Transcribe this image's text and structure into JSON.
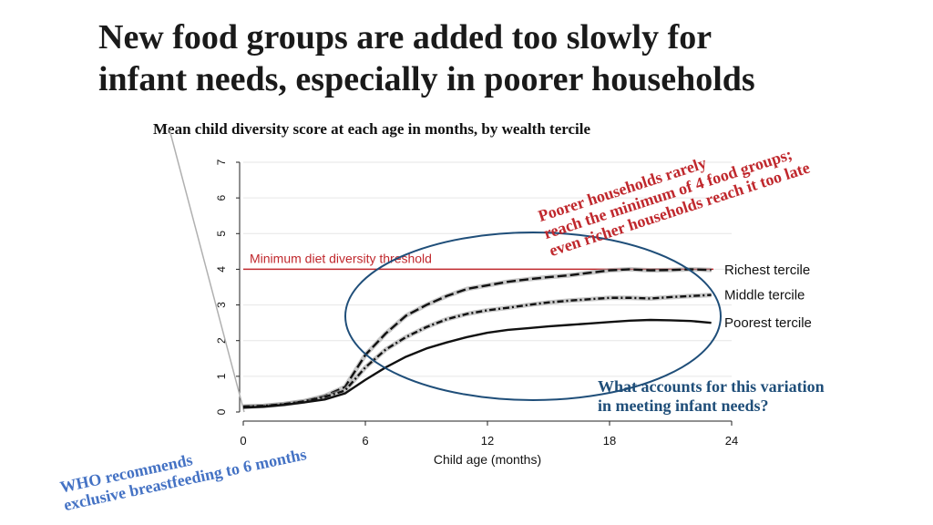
{
  "slide": {
    "title_line1": "New food groups are added too slowly for",
    "title_line2": "infant needs, especially in poorer households"
  },
  "annotations": {
    "poor_note": [
      "Poorer households rarely",
      "reach the minimum of 4 food groups;",
      "even richer households reach it too late"
    ],
    "who_note": [
      "WHO recommends",
      "exclusive breastfeeding to 6 months"
    ],
    "question": [
      "What accounts for this variation",
      "in meeting infant needs?"
    ]
  },
  "colors": {
    "threshold": "#c0282d",
    "ellipse": "#1f4e79",
    "poor_note": "#c0282d",
    "who_note": "#4472c4",
    "question": "#1f4e79",
    "grid": "#e6e6e6"
  },
  "chart_data": {
    "type": "line",
    "title": "Mean child diversity score at each age in months, by wealth tercile",
    "xlabel": "Child age (months)",
    "ylabel": "",
    "xlim": [
      0,
      24
    ],
    "ylim": [
      0,
      7
    ],
    "xticks": [
      0,
      6,
      12,
      18,
      24
    ],
    "yticks": [
      0,
      1,
      2,
      3,
      4,
      5,
      6,
      7
    ],
    "threshold": {
      "value": 4,
      "label": "Minimum diet diversity threshold"
    },
    "x": [
      0,
      1,
      2,
      3,
      4,
      5,
      6,
      7,
      8,
      9,
      10,
      11,
      12,
      13,
      14,
      15,
      16,
      17,
      18,
      19,
      20,
      21,
      22,
      23
    ],
    "series": [
      {
        "name": "Richest tercile",
        "dash": "10 4",
        "values": [
          0.15,
          0.17,
          0.22,
          0.3,
          0.45,
          0.7,
          1.6,
          2.2,
          2.7,
          3.0,
          3.25,
          3.45,
          3.55,
          3.65,
          3.72,
          3.78,
          3.83,
          3.9,
          3.97,
          4.0,
          3.97,
          3.98,
          4.0,
          3.98
        ]
      },
      {
        "name": "Middle tercile",
        "dash": "7 3 2 3",
        "values": [
          0.15,
          0.17,
          0.22,
          0.3,
          0.42,
          0.6,
          1.25,
          1.75,
          2.1,
          2.38,
          2.6,
          2.75,
          2.85,
          2.92,
          3.0,
          3.07,
          3.12,
          3.16,
          3.2,
          3.2,
          3.18,
          3.22,
          3.25,
          3.28
        ]
      },
      {
        "name": "Poorest tercile",
        "dash": "",
        "values": [
          0.12,
          0.15,
          0.2,
          0.27,
          0.35,
          0.52,
          0.9,
          1.25,
          1.55,
          1.78,
          1.95,
          2.1,
          2.22,
          2.3,
          2.35,
          2.4,
          2.44,
          2.48,
          2.52,
          2.56,
          2.58,
          2.57,
          2.55,
          2.5
        ]
      }
    ]
  }
}
